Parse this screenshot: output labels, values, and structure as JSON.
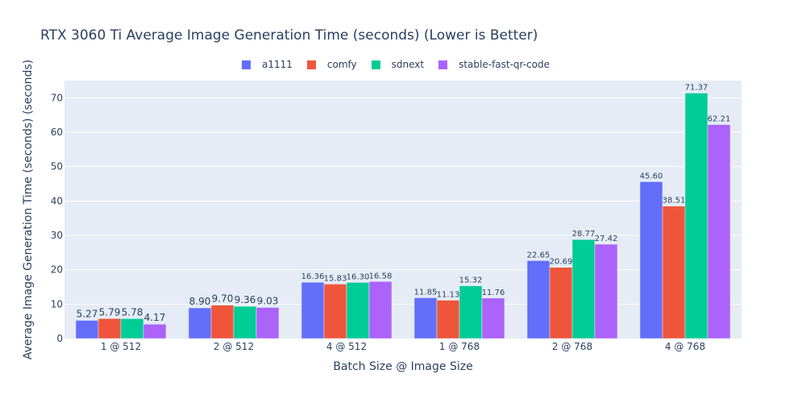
{
  "chart_data": {
    "type": "bar",
    "title": "RTX 3060 Ti Average Image Generation Time (seconds) (Lower is Better)",
    "xlabel": "Batch Size @ Image Size",
    "ylabel": "Average Image Generation Time (seconds) (seconds)",
    "categories": [
      "1 @ 512",
      "2 @ 512",
      "4 @ 512",
      "1 @ 768",
      "2 @ 768",
      "4 @ 768"
    ],
    "ylim": [
      0,
      75
    ],
    "yticks": [
      0,
      10,
      20,
      30,
      40,
      50,
      60,
      70
    ],
    "grid": true,
    "legend_position": "top-center",
    "series": [
      {
        "name": "a1111",
        "color": "#636efa",
        "values": [
          5.27,
          8.9,
          16.36,
          11.85,
          22.65,
          45.6
        ],
        "labels": [
          "5.27",
          "8.90",
          "16.36",
          "11.85",
          "22.65",
          "45.60"
        ]
      },
      {
        "name": "comfy",
        "color": "#ef553b",
        "values": [
          5.79,
          9.7,
          15.83,
          11.13,
          20.69,
          38.51
        ],
        "labels": [
          "5.79",
          "9.70",
          "15.83",
          "11.13",
          "20.69",
          "38.51"
        ]
      },
      {
        "name": "sdnext",
        "color": "#00cc96",
        "values": [
          5.78,
          9.36,
          16.3,
          15.32,
          28.77,
          71.37
        ],
        "labels": [
          "5.78",
          "9.36",
          "16.30",
          "15.32",
          "28.77",
          "71.37"
        ]
      },
      {
        "name": "stable-fast-qr-code",
        "color": "#ab63fa",
        "values": [
          4.17,
          9.03,
          16.58,
          11.76,
          27.42,
          62.21
        ],
        "labels": [
          "4.17",
          "9.03",
          "16.58",
          "11.76",
          "27.42",
          "62.21"
        ]
      }
    ]
  }
}
